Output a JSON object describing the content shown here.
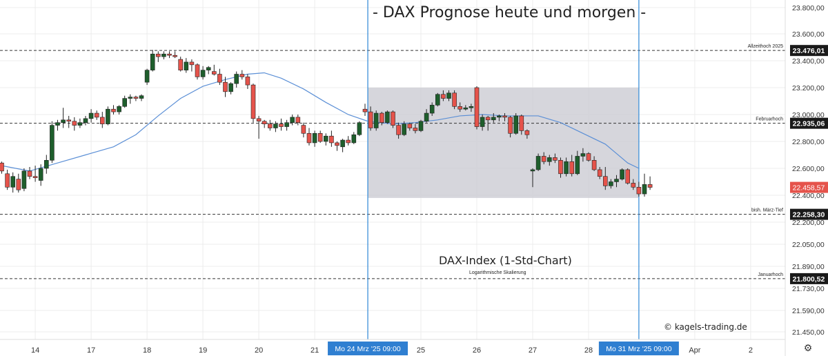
{
  "title": "- DAX Prognose heute und morgen -",
  "subtitle": "DAX-Index (1-Std-Chart)",
  "scale_note": "Logarithmische Skalierung",
  "watermark": "© kagels-trading.de",
  "settings_icon": "gear-icon",
  "colors": {
    "up": "#1e5e2c",
    "down": "#e5534b",
    "ma": "#5b8fd6",
    "zone": "#cfcfd6",
    "vline": "#3d8fd8",
    "grid": "#ececec",
    "axis_text": "#333333"
  },
  "chart_data": {
    "type": "candlestick",
    "title": "DAX-Index (1-Std-Chart)",
    "y_ticks": [
      "23.800,00",
      "23.600,00",
      "23.400,00",
      "23.200,00",
      "23.000,00",
      "22.800,00",
      "22.600,00",
      "22.400,00",
      "22.200,00",
      "22.050,00",
      "21.890,00",
      "21.730,00",
      "21.590,00",
      "21.450,00"
    ],
    "y_tick_values": [
      23800,
      23600,
      23400,
      23200,
      23000,
      22800,
      22600,
      22400,
      22200,
      22050,
      21890,
      21730,
      21590,
      21450
    ],
    "x_ticks": [
      {
        "label": "14",
        "slot": 6
      },
      {
        "label": "17",
        "slot": 16
      },
      {
        "label": "18",
        "slot": 26
      },
      {
        "label": "19",
        "slot": 36
      },
      {
        "label": "20",
        "slot": 46
      },
      {
        "label": "21",
        "slot": 56
      },
      {
        "label": "25",
        "slot": 75
      },
      {
        "label": "26",
        "slot": 85
      },
      {
        "label": "27",
        "slot": 95
      },
      {
        "label": "28",
        "slot": 105
      },
      {
        "label": "Apr",
        "slot": 124
      },
      {
        "label": "2",
        "slot": 134
      }
    ],
    "x_highlights": [
      {
        "label": "Mo 24 Mrz '25",
        "time": "09:00",
        "slot": 65.5
      },
      {
        "label": "Mo 31 Mrz '25",
        "time": "09:00",
        "slot": 114
      }
    ],
    "levels": [
      {
        "name": "Allzeithoch 2025",
        "value": 23476.01,
        "label": "23.476,01"
      },
      {
        "name": "Februarhoch",
        "value": 22935.06,
        "label": "22.935,06"
      },
      {
        "name": "bish. März-Tief",
        "value": 22258.3,
        "label": "22.258,30"
      },
      {
        "name": "Januarhoch",
        "value": 21800.52,
        "label": "21.800,52"
      }
    ],
    "current_price": {
      "value": 22458.57,
      "label": "22.458,57"
    },
    "zone": {
      "top": 23200,
      "bottom": 22380,
      "from_slot": 65.5,
      "to_slot": 114
    },
    "candles": [
      [
        22640,
        22650,
        22560,
        22580
      ],
      [
        22560,
        22590,
        22440,
        22460
      ],
      [
        22460,
        22570,
        22420,
        22540
      ],
      [
        22520,
        22560,
        22420,
        22440
      ],
      [
        22450,
        22600,
        22430,
        22580
      ],
      [
        22580,
        22610,
        22520,
        22540
      ],
      [
        22540,
        22620,
        22500,
        22530
      ],
      [
        22510,
        22630,
        22470,
        22600
      ],
      [
        22600,
        22700,
        22560,
        22660
      ],
      [
        22660,
        22950,
        22640,
        22920
      ],
      [
        22920,
        22960,
        22880,
        22940
      ],
      [
        22940,
        23050,
        22900,
        22960
      ],
      [
        22960,
        22990,
        22900,
        22950
      ],
      [
        22950,
        22980,
        22880,
        22920
      ],
      [
        22920,
        22970,
        22900,
        22940
      ],
      [
        22940,
        22990,
        22920,
        22970
      ],
      [
        22970,
        23040,
        22940,
        23010
      ],
      [
        23010,
        23030,
        22960,
        22980
      ],
      [
        22980,
        23020,
        22900,
        22930
      ],
      [
        22930,
        23060,
        22920,
        23040
      ],
      [
        23040,
        23070,
        23000,
        23020
      ],
      [
        23020,
        23070,
        23000,
        23060
      ],
      [
        23060,
        23140,
        23050,
        23120
      ],
      [
        23120,
        23150,
        23080,
        23130
      ],
      [
        23130,
        23140,
        23100,
        23120
      ],
      [
        23120,
        23150,
        23100,
        23140
      ],
      [
        23240,
        23340,
        23220,
        23330
      ],
      [
        23330,
        23480,
        23320,
        23450
      ],
      [
        23450,
        23470,
        23390,
        23430
      ],
      [
        23430,
        23470,
        23410,
        23450
      ],
      [
        23450,
        23470,
        23420,
        23440
      ],
      [
        23440,
        23470,
        23420,
        23430
      ],
      [
        23410,
        23430,
        23320,
        23330
      ],
      [
        23330,
        23420,
        23310,
        23390
      ],
      [
        23390,
        23410,
        23320,
        23370
      ],
      [
        23370,
        23380,
        23260,
        23280
      ],
      [
        23280,
        23360,
        23260,
        23330
      ],
      [
        23330,
        23360,
        23300,
        23350
      ],
      [
        23320,
        23370,
        23290,
        23300
      ],
      [
        23300,
        23340,
        23220,
        23240
      ],
      [
        23240,
        23280,
        23130,
        23170
      ],
      [
        23170,
        23240,
        23150,
        23230
      ],
      [
        23230,
        23320,
        23200,
        23300
      ],
      [
        23300,
        23330,
        23260,
        23280
      ],
      [
        23280,
        23300,
        23190,
        23220
      ],
      [
        23220,
        23230,
        22940,
        22970
      ],
      [
        22970,
        22990,
        22820,
        22950
      ],
      [
        22950,
        22960,
        22900,
        22930
      ],
      [
        22930,
        22960,
        22880,
        22900
      ],
      [
        22900,
        22950,
        22870,
        22930
      ],
      [
        22930,
        22970,
        22880,
        22910
      ],
      [
        22910,
        22960,
        22880,
        22940
      ],
      [
        22940,
        23000,
        22920,
        22980
      ],
      [
        22980,
        23000,
        22920,
        22940
      ],
      [
        22920,
        22940,
        22830,
        22860
      ],
      [
        22860,
        22900,
        22770,
        22790
      ],
      [
        22790,
        22880,
        22760,
        22860
      ],
      [
        22860,
        22880,
        22790,
        22800
      ],
      [
        22800,
        22860,
        22770,
        22840
      ],
      [
        22840,
        22880,
        22760,
        22790
      ],
      [
        22790,
        22800,
        22730,
        22770
      ],
      [
        22760,
        22820,
        22720,
        22810
      ],
      [
        22810,
        22840,
        22770,
        22790
      ],
      [
        22790,
        22870,
        22780,
        22850
      ],
      [
        22850,
        22950,
        22840,
        22940
      ],
      [
        23040,
        23080,
        22990,
        23020
      ],
      [
        23020,
        23060,
        22880,
        22900
      ],
      [
        22900,
        23030,
        22880,
        23010
      ],
      [
        23010,
        23020,
        22920,
        22940
      ],
      [
        22940,
        23030,
        22930,
        23020
      ],
      [
        23020,
        23030,
        22900,
        22920
      ],
      [
        22920,
        22940,
        22820,
        22850
      ],
      [
        22850,
        22950,
        22840,
        22930
      ],
      [
        22930,
        22940,
        22880,
        22900
      ],
      [
        22900,
        22930,
        22860,
        22880
      ],
      [
        22880,
        22960,
        22870,
        22950
      ],
      [
        22950,
        23040,
        22940,
        23010
      ],
      [
        23010,
        23090,
        22990,
        23070
      ],
      [
        23070,
        23160,
        23060,
        23150
      ],
      [
        23150,
        23180,
        23100,
        23120
      ],
      [
        23120,
        23180,
        23100,
        23160
      ],
      [
        23160,
        23180,
        23040,
        23060
      ],
      [
        23060,
        23090,
        23020,
        23040
      ],
      [
        23040,
        23070,
        23030,
        23050
      ],
      [
        23050,
        23080,
        23020,
        23060
      ],
      [
        23200,
        23210,
        22890,
        22910
      ],
      [
        22910,
        23000,
        22880,
        22980
      ],
      [
        22980,
        22990,
        22880,
        22960
      ],
      [
        22960,
        23010,
        22940,
        22980
      ],
      [
        22980,
        23000,
        22950,
        22990
      ],
      [
        22990,
        23010,
        22950,
        22980
      ],
      [
        22980,
        22990,
        22830,
        22860
      ],
      [
        22860,
        23010,
        22850,
        22990
      ],
      [
        22990,
        23000,
        22850,
        22880
      ],
      [
        22880,
        22890,
        22820,
        22850
      ],
      [
        22580,
        22600,
        22460,
        22590
      ],
      [
        22590,
        22710,
        22580,
        22690
      ],
      [
        22690,
        22720,
        22630,
        22650
      ],
      [
        22650,
        22700,
        22620,
        22680
      ],
      [
        22680,
        22710,
        22640,
        22660
      ],
      [
        22660,
        22680,
        22530,
        22560
      ],
      [
        22560,
        22680,
        22540,
        22650
      ],
      [
        22650,
        22700,
        22540,
        22560
      ],
      [
        22560,
        22730,
        22550,
        22690
      ],
      [
        22690,
        22750,
        22650,
        22710
      ],
      [
        22710,
        22720,
        22650,
        22660
      ],
      [
        22660,
        22690,
        22580,
        22590
      ],
      [
        22590,
        22610,
        22520,
        22540
      ],
      [
        22540,
        22610,
        22440,
        22470
      ],
      [
        22470,
        22520,
        22450,
        22500
      ],
      [
        22500,
        22550,
        22460,
        22520
      ],
      [
        22520,
        22600,
        22510,
        22590
      ],
      [
        22590,
        22600,
        22480,
        22490
      ],
      [
        22490,
        22520,
        22440,
        22460
      ],
      [
        22460,
        22500,
        22390,
        22410
      ],
      [
        22410,
        22560,
        22390,
        22480
      ],
      [
        22480,
        22540,
        22440,
        22458.57
      ]
    ],
    "ma_line": [
      [
        0,
        22620
      ],
      [
        5,
        22580
      ],
      [
        10,
        22640
      ],
      [
        15,
        22700
      ],
      [
        20,
        22760
      ],
      [
        24,
        22850
      ],
      [
        28,
        22990
      ],
      [
        32,
        23120
      ],
      [
        36,
        23210
      ],
      [
        40,
        23260
      ],
      [
        44,
        23300
      ],
      [
        47,
        23310
      ],
      [
        50,
        23270
      ],
      [
        54,
        23190
      ],
      [
        58,
        23090
      ],
      [
        62,
        23000
      ],
      [
        65.5,
        22950
      ],
      [
        70,
        22930
      ],
      [
        74,
        22940
      ],
      [
        78,
        22960
      ],
      [
        82,
        22990
      ],
      [
        86,
        23000
      ],
      [
        90,
        22990
      ],
      [
        94,
        22990
      ],
      [
        96,
        22990
      ],
      [
        100,
        22940
      ],
      [
        104,
        22860
      ],
      [
        108,
        22780
      ],
      [
        112,
        22640
      ],
      [
        114,
        22600
      ]
    ]
  }
}
